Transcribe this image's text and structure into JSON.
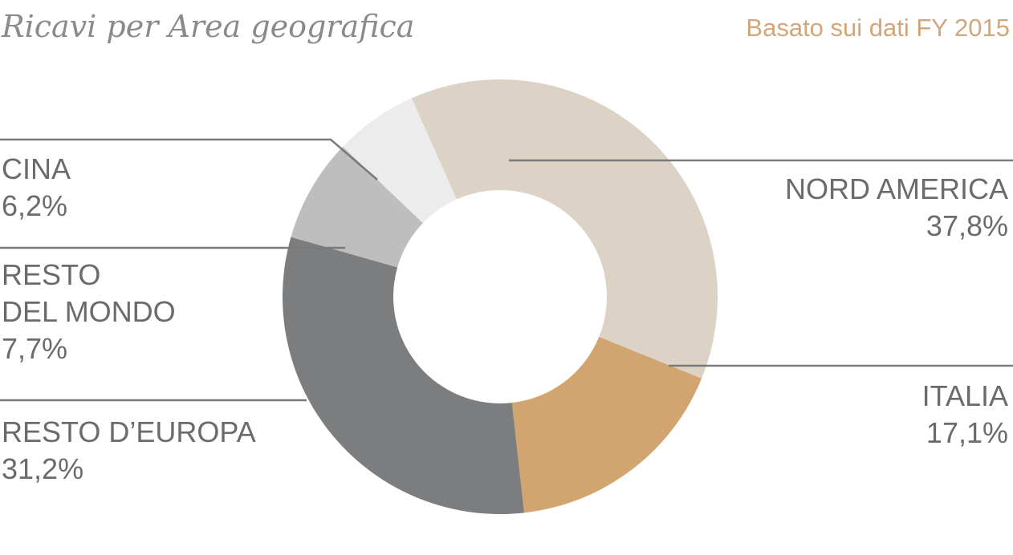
{
  "header": {
    "title": "Ricavi per Area geografica",
    "subtitle": "Basato sui dati FY 2015",
    "subtitle_color": "#d2a679"
  },
  "chart_data": {
    "type": "pie",
    "donut": true,
    "title": "Ricavi per Area geografica",
    "subtitle": "Basato sui dati FY 2015",
    "unit": "%",
    "slices": [
      {
        "key": "nord_america",
        "lines": [
          "NORD AMERICA"
        ],
        "value_label": "37,8%",
        "value": 37.8,
        "color": "#dcd3c6"
      },
      {
        "key": "italia",
        "lines": [
          "ITALIA"
        ],
        "value_label": "17,1%",
        "value": 17.1,
        "color": "#d2a46f"
      },
      {
        "key": "resto_europa",
        "lines": [
          "RESTO D’EUROPA"
        ],
        "value_label": "31,2%",
        "value": 31.2,
        "color": "#7c7d7e"
      },
      {
        "key": "resto_mondo",
        "lines": [
          "RESTO",
          "DEL MONDO"
        ],
        "value_label": "7,7%",
        "value": 7.7,
        "color": "#bebebe"
      },
      {
        "key": "cina",
        "lines": [
          "CINA"
        ],
        "value_label": "6,2%",
        "value": 6.2,
        "color": "#ececec"
      }
    ],
    "legend": "inline-labels"
  }
}
